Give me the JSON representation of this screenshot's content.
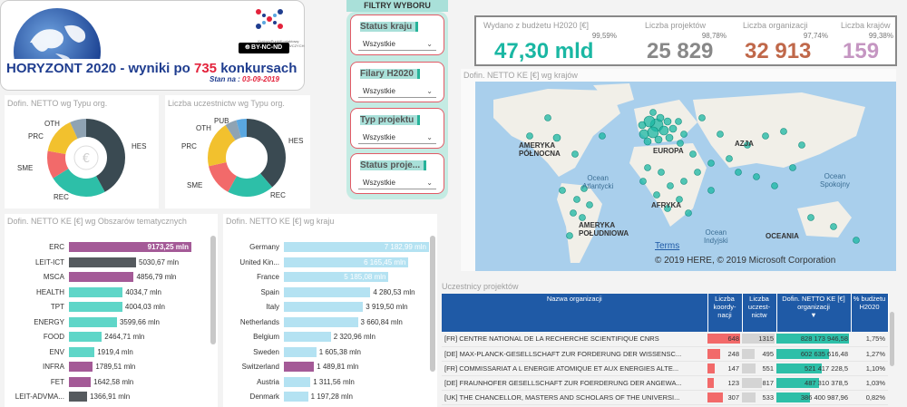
{
  "header": {
    "title_prefix": "HORYZONT 2020",
    "title_mid": " - wyniki po ",
    "title_num": "735",
    "title_suffix": " konkursach",
    "stan_label": "Stan na :",
    "stan_date": "03-09-2019",
    "logo_text": "KrajowyPunktKontaktowy PROGRAMÓW BADAWCZYCH UE",
    "license": "BY-NC-ND"
  },
  "filters": {
    "title": "FILTRY WYBORU",
    "items": [
      {
        "label": "Status kraju",
        "value": "Wszystkie"
      },
      {
        "label": "Filary H2020",
        "value": "Wszystkie"
      },
      {
        "label": "Typ projektu",
        "value": "Wszystkie"
      },
      {
        "label": "Status proje...",
        "value": "Wszystkie"
      }
    ]
  },
  "kpi": {
    "budget_label": "Wydano z budżetu H2020 [€]",
    "budget_pct": "99,59%",
    "budget_value": "47,30 mld",
    "projects_label": "Liczba projektów",
    "projects_pct": "98,78%",
    "projects_value": "25 829",
    "orgs_label": "Liczba organizacji",
    "orgs_pct": "97,74%",
    "orgs_value": "32 913",
    "countries_label": "Liczba krajów",
    "countries_pct": "99,38%",
    "countries_value": "159"
  },
  "donut1": {
    "title": "Dofin. NETTO wg Typu org.",
    "labels": {
      "oth": "OTH",
      "prc": "PRC",
      "sme": "SME",
      "rec": "REC",
      "hes": "HES"
    }
  },
  "donut2": {
    "title": "Liczba uczestnictw wg Typu org.",
    "labels": {
      "pub": "PUB",
      "oth": "OTH",
      "prc": "PRC",
      "sme": "SME",
      "rec": "REC",
      "hes": "HES"
    }
  },
  "map": {
    "title": "Dofin. NETTO KE [€] wg krajów",
    "labels": {
      "na": "AMERYKA\nPÓŁNOCNA",
      "eu": "EUROPA",
      "as": "AZJA",
      "atl": "Ocean\nAtlantycki",
      "af": "AFRYKA",
      "sa": "AMERYKA\nPOŁUDNIOWA",
      "ind": "Ocean\nIndyjski",
      "pac": "Ocean\nSpokojny",
      "oc": "OCEANIA"
    },
    "terms": "Terms",
    "copyright": "© 2019 HERE, © 2019 Microsoft Corporation"
  },
  "areas": {
    "title": "Dofin. NETTO KE [€] wg Obszarów tematycznych",
    "rows": [
      {
        "label": "ERC",
        "value": 9173.25,
        "text": "9173,25 mln",
        "color": "#a45a97"
      },
      {
        "label": "LEIT-ICT",
        "value": 5030.67,
        "text": "5030,67 mln",
        "color": "#555a5e"
      },
      {
        "label": "MSCA",
        "value": 4856.79,
        "text": "4856,79 mln",
        "color": "#a45a97"
      },
      {
        "label": "HEALTH",
        "value": 4034.7,
        "text": "4034,7 mln",
        "color": "#5fd6c8"
      },
      {
        "label": "TPT",
        "value": 4004.03,
        "text": "4004,03 mln",
        "color": "#5fd6c8"
      },
      {
        "label": "ENERGY",
        "value": 3599.66,
        "text": "3599,66 mln",
        "color": "#5fd6c8"
      },
      {
        "label": "FOOD",
        "value": 2464.71,
        "text": "2464,71 mln",
        "color": "#5fd6c8"
      },
      {
        "label": "ENV",
        "value": 1919.4,
        "text": "1919,4 mln",
        "color": "#5fd6c8"
      },
      {
        "label": "INFRA",
        "value": 1789.51,
        "text": "1789,51 mln",
        "color": "#a45a97"
      },
      {
        "label": "FET",
        "value": 1642.58,
        "text": "1642,58 mln",
        "color": "#a45a97"
      },
      {
        "label": "LEIT-ADVMA...",
        "value": 1366.91,
        "text": "1366,91 mln",
        "color": "#555a5e"
      }
    ]
  },
  "countries": {
    "title": "Dofin. NETTO KE [€] wg kraju",
    "rows": [
      {
        "label": "Germany",
        "value": 7182.99,
        "text": "7 182,99 mln",
        "color": "#b4e2f2"
      },
      {
        "label": "United Kin...",
        "value": 6165.45,
        "text": "6 165,45 mln",
        "color": "#b4e2f2"
      },
      {
        "label": "France",
        "value": 5185.08,
        "text": "5 185,08 mln",
        "color": "#b4e2f2"
      },
      {
        "label": "Spain",
        "value": 4280.53,
        "text": "4 280,53 mln",
        "color": "#b4e2f2"
      },
      {
        "label": "Italy",
        "value": 3919.5,
        "text": "3 919,50 mln",
        "color": "#b4e2f2"
      },
      {
        "label": "Netherlands",
        "value": 3660.84,
        "text": "3 660,84 mln",
        "color": "#b4e2f2"
      },
      {
        "label": "Belgium",
        "value": 2320.96,
        "text": "2 320,96 mln",
        "color": "#b4e2f2"
      },
      {
        "label": "Sweden",
        "value": 1605.38,
        "text": "1 605,38 mln",
        "color": "#b4e2f2"
      },
      {
        "label": "Switzerland",
        "value": 1489.81,
        "text": "1 489,81 mln",
        "color": "#a45a97"
      },
      {
        "label": "Austria",
        "value": 1311.56,
        "text": "1 311,56 mln",
        "color": "#b4e2f2"
      },
      {
        "label": "Denmark",
        "value": 1197.28,
        "text": "1 197,28 mln",
        "color": "#b4e2f2"
      }
    ]
  },
  "participants": {
    "title": "Uczestnicy projektów",
    "headers": [
      "Nazwa organizacji",
      "Liczba koordy-nacji",
      "Liczba uczest-nictw",
      "Dofin. NETTO KE [€] organizacji",
      "% budżetu H2020"
    ],
    "rows": [
      {
        "name": "[FR] CENTRE NATIONAL DE LA RECHERCHE SCIENTIFIQUE CNRS",
        "coord": 648,
        "coord_text": "648",
        "part": 1315,
        "part_text": "1315",
        "fund": 828173946.58,
        "fund_text": "828 173 946,58",
        "pct": "1,75%"
      },
      {
        "name": "[DE] MAX-PLANCK-GESELLSCHAFT ZUR FORDERUNG DER WISSENSC...",
        "coord": 248,
        "coord_text": "248",
        "part": 495,
        "part_text": "495",
        "fund": 602635616.48,
        "fund_text": "602 635 616,48",
        "pct": "1,27%"
      },
      {
        "name": "[FR] COMMISSARIAT A L ENERGIE ATOMIQUE ET AUX ENERGIES ALTE...",
        "coord": 147,
        "coord_text": "147",
        "part": 551,
        "part_text": "551",
        "fund": 521417228,
        "fund_text": "521 417 228,5",
        "pct": "1,10%"
      },
      {
        "name": "[DE] FRAUNHOFER GESELLSCHAFT ZUR FOERDERUNG DER ANGEWA...",
        "coord": 123,
        "coord_text": "123",
        "part": 817,
        "part_text": "817",
        "fund": 487310378,
        "fund_text": "487 310 378,5",
        "pct": "1,03%"
      },
      {
        "name": "[UK] THE CHANCELLOR, MASTERS AND SCHOLARS OF THE UNIVERSI...",
        "coord": 307,
        "coord_text": "307",
        "part": 533,
        "part_text": "533",
        "fund": 386400987.96,
        "fund_text": "386 400 987,96",
        "pct": "0,82%"
      }
    ]
  }
}
